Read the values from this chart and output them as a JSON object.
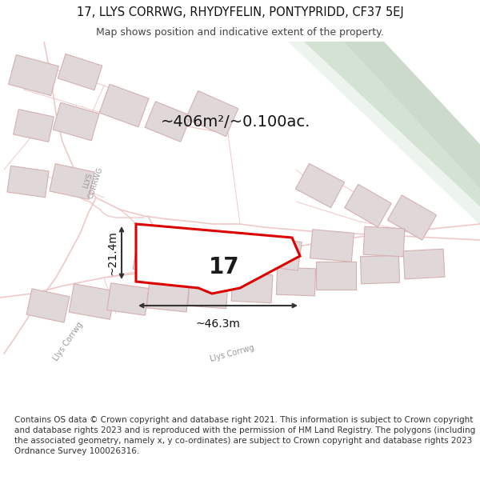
{
  "title_line1": "17, LLYS CORRWG, RHYDYFELIN, PONTYPRIDD, CF37 5EJ",
  "title_line2": "Map shows position and indicative extent of the property.",
  "footer_text": "Contains OS data © Crown copyright and database right 2021. This information is subject to Crown copyright and database rights 2023 and is reproduced with the permission of HM Land Registry. The polygons (including the associated geometry, namely x, y co-ordinates) are subject to Crown copyright and database rights 2023 Ordnance Survey 100026316.",
  "area_label": "~406m²/~0.100ac.",
  "number_label": "17",
  "dim_width": "~46.3m",
  "dim_height": "~21.4m",
  "map_bg": "#ffffff",
  "title_fontsize": 10.5,
  "subtitle_fontsize": 9.0,
  "footer_fontsize": 7.5,
  "road_color": "#f0c8c8",
  "building_face": "#e0d8d8",
  "building_edge": "#d4b0b0",
  "property_stroke": "#dd0000",
  "green_color1": "#c8d8c0",
  "green_color2": "#d8e8d0",
  "annotation_color": "#222222",
  "street_label_color": "#999999",
  "title_color": "#111111",
  "footer_color": "#333333"
}
